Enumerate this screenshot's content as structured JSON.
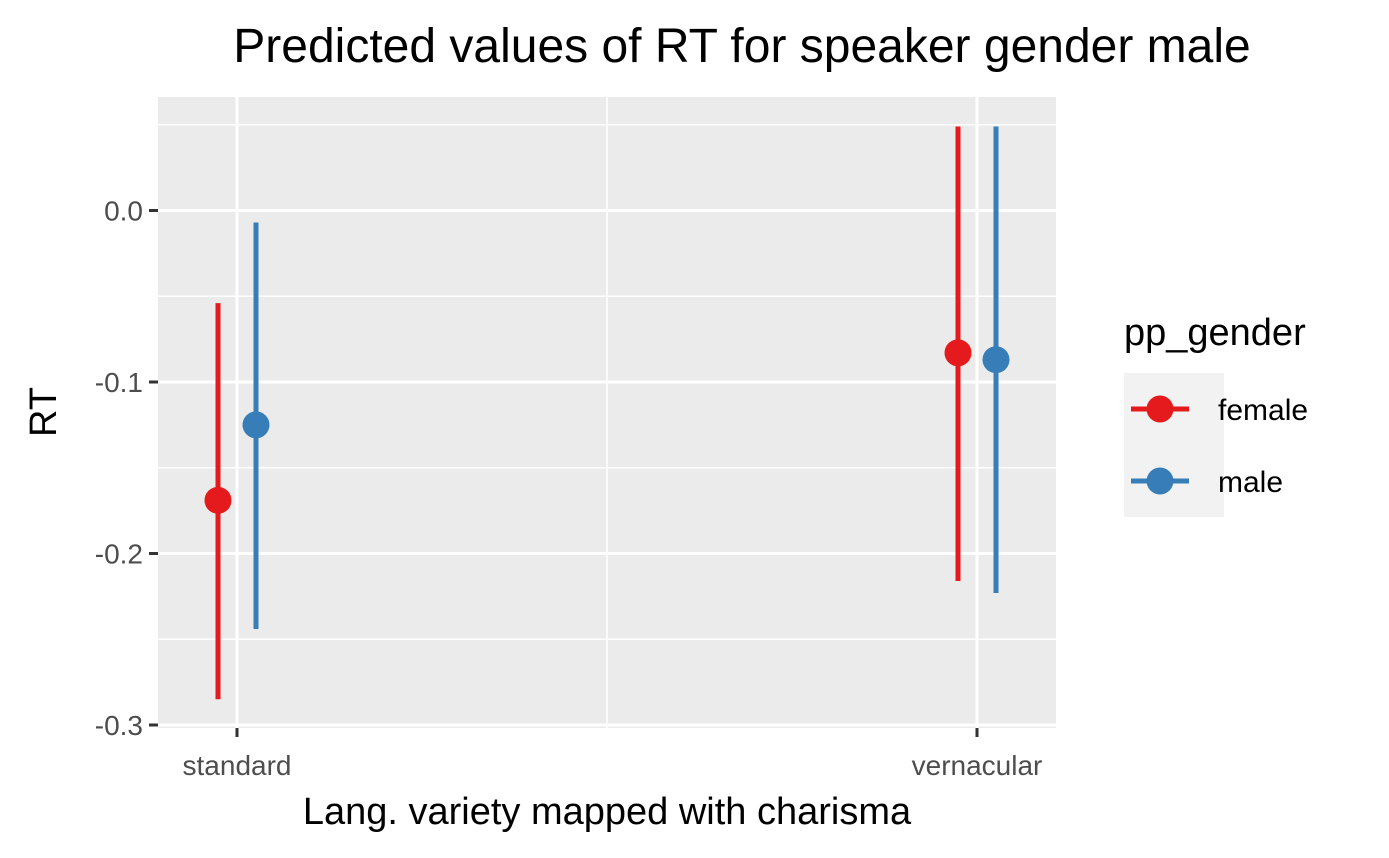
{
  "chart_data": {
    "type": "scatter",
    "title": "Predicted values of RT for speaker gender male",
    "xlabel": "Lang. variety mapped with charisma",
    "ylabel": "RT",
    "categories": [
      "standard",
      "vernacular"
    ],
    "yticks": [
      "0.0",
      "-0.1",
      "-0.2",
      "-0.3"
    ],
    "ytick_values": [
      0.0,
      -0.1,
      -0.2,
      -0.3
    ],
    "ylim": [
      -0.3,
      0.05
    ],
    "grid": true,
    "legend_title": "pp_gender",
    "legend_position": "right",
    "series": [
      {
        "name": "female",
        "color": "#E41A1C",
        "values": [
          -0.169,
          -0.083
        ],
        "lower": [
          -0.285,
          -0.216
        ],
        "upper": [
          -0.054,
          0.049
        ]
      },
      {
        "name": "male",
        "color": "#377EB8",
        "values": [
          -0.125,
          -0.087
        ],
        "lower": [
          -0.244,
          -0.223
        ],
        "upper": [
          -0.007,
          0.049
        ]
      }
    ]
  }
}
